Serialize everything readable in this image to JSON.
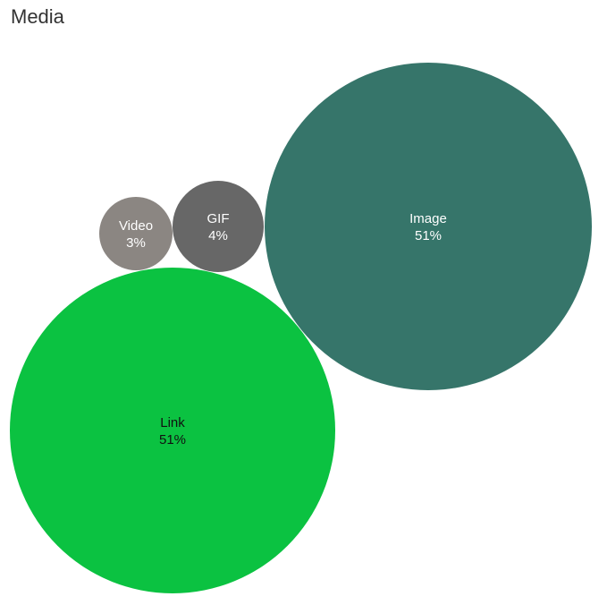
{
  "chart_data": {
    "type": "bubble",
    "title": "Media",
    "items": [
      {
        "name": "Link",
        "percent": "51%",
        "value": 51,
        "color": "#0bc241",
        "text_color": "#111111"
      },
      {
        "name": "Image",
        "percent": "51%",
        "value": 51,
        "color": "#36756a",
        "text_color": "#ffffff"
      },
      {
        "name": "GIF",
        "percent": "4%",
        "value": 4,
        "color": "#676767",
        "text_color": "#ffffff"
      },
      {
        "name": "Video",
        "percent": "3%",
        "value": 3,
        "color": "#8b8682",
        "text_color": "#ffffff"
      }
    ]
  }
}
